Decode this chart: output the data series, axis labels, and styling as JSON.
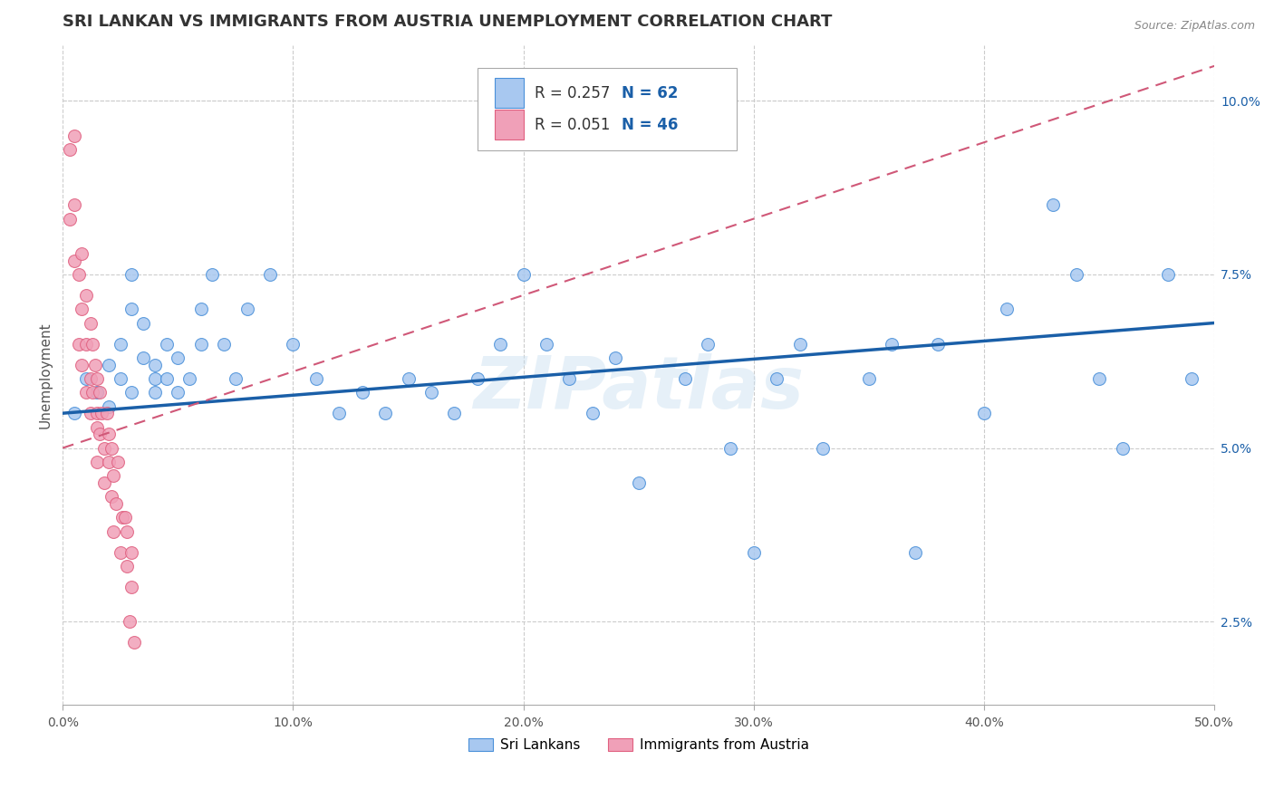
{
  "title": "SRI LANKAN VS IMMIGRANTS FROM AUSTRIA UNEMPLOYMENT CORRELATION CHART",
  "source": "Source: ZipAtlas.com",
  "ylabel": "Unemployment",
  "xlim": [
    0.0,
    0.5
  ],
  "ylim": [
    0.013,
    0.108
  ],
  "xticks": [
    0.0,
    0.1,
    0.2,
    0.3,
    0.4,
    0.5
  ],
  "xticklabels": [
    "0.0%",
    "10.0%",
    "20.0%",
    "30.0%",
    "40.0%",
    "50.0%"
  ],
  "yticks_right": [
    0.025,
    0.05,
    0.075,
    0.1
  ],
  "yticklabels_right": [
    "2.5%",
    "5.0%",
    "7.5%",
    "10.0%"
  ],
  "sri_lankans_color": "#a8c8f0",
  "austria_color": "#f0a0b8",
  "sri_lankans_edge_color": "#4a90d9",
  "austria_edge_color": "#e06080",
  "sri_lankans_line_color": "#1a5fa8",
  "austria_line_color": "#d05878",
  "legend_R1": "R = 0.257",
  "legend_N1": "N = 62",
  "legend_R2": "R = 0.051",
  "legend_N2": "N = 46",
  "legend_label1": "Sri Lankans",
  "legend_label2": "Immigrants from Austria",
  "watermark": "ZIPatlas",
  "background_color": "#ffffff",
  "title_fontsize": 13,
  "axis_label_fontsize": 11,
  "tick_fontsize": 10,
  "sri_lankans_x": [
    0.005,
    0.01,
    0.015,
    0.02,
    0.02,
    0.025,
    0.025,
    0.03,
    0.03,
    0.03,
    0.035,
    0.035,
    0.04,
    0.04,
    0.04,
    0.045,
    0.045,
    0.05,
    0.05,
    0.055,
    0.06,
    0.06,
    0.065,
    0.07,
    0.075,
    0.08,
    0.09,
    0.1,
    0.11,
    0.12,
    0.13,
    0.14,
    0.15,
    0.16,
    0.17,
    0.18,
    0.19,
    0.2,
    0.21,
    0.22,
    0.23,
    0.24,
    0.25,
    0.27,
    0.28,
    0.29,
    0.3,
    0.31,
    0.32,
    0.33,
    0.35,
    0.36,
    0.37,
    0.38,
    0.4,
    0.41,
    0.43,
    0.44,
    0.45,
    0.46,
    0.48,
    0.49
  ],
  "sri_lankans_y": [
    0.055,
    0.06,
    0.058,
    0.062,
    0.056,
    0.06,
    0.065,
    0.058,
    0.07,
    0.075,
    0.068,
    0.063,
    0.058,
    0.062,
    0.06,
    0.065,
    0.06,
    0.063,
    0.058,
    0.06,
    0.065,
    0.07,
    0.075,
    0.065,
    0.06,
    0.07,
    0.075,
    0.065,
    0.06,
    0.055,
    0.058,
    0.055,
    0.06,
    0.058,
    0.055,
    0.06,
    0.065,
    0.075,
    0.065,
    0.06,
    0.055,
    0.063,
    0.045,
    0.06,
    0.065,
    0.05,
    0.035,
    0.06,
    0.065,
    0.05,
    0.06,
    0.065,
    0.035,
    0.065,
    0.055,
    0.07,
    0.085,
    0.075,
    0.06,
    0.05,
    0.075,
    0.06
  ],
  "austria_x": [
    0.003,
    0.003,
    0.005,
    0.005,
    0.005,
    0.007,
    0.007,
    0.008,
    0.008,
    0.008,
    0.01,
    0.01,
    0.01,
    0.012,
    0.012,
    0.012,
    0.013,
    0.013,
    0.014,
    0.015,
    0.015,
    0.015,
    0.015,
    0.016,
    0.016,
    0.017,
    0.018,
    0.018,
    0.019,
    0.02,
    0.02,
    0.021,
    0.021,
    0.022,
    0.022,
    0.023,
    0.024,
    0.025,
    0.026,
    0.027,
    0.028,
    0.028,
    0.029,
    0.03,
    0.03,
    0.031
  ],
  "austria_y": [
    0.093,
    0.083,
    0.095,
    0.085,
    0.077,
    0.075,
    0.065,
    0.078,
    0.07,
    0.062,
    0.072,
    0.065,
    0.058,
    0.068,
    0.06,
    0.055,
    0.065,
    0.058,
    0.062,
    0.055,
    0.06,
    0.053,
    0.048,
    0.058,
    0.052,
    0.055,
    0.05,
    0.045,
    0.055,
    0.052,
    0.048,
    0.043,
    0.05,
    0.046,
    0.038,
    0.042,
    0.048,
    0.035,
    0.04,
    0.04,
    0.033,
    0.038,
    0.025,
    0.03,
    0.035,
    0.022
  ]
}
